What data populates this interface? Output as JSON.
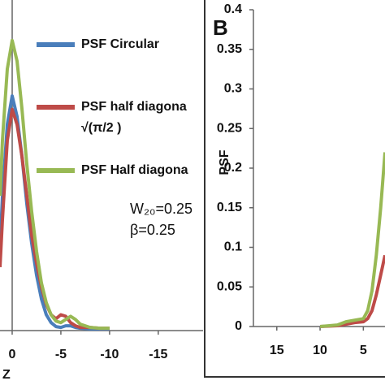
{
  "chart_data": [
    {
      "type": "line",
      "x": [
        1.25,
        1,
        0.5,
        0,
        -0.5,
        -1,
        -1.5,
        -2,
        -2.5,
        -3,
        -3.5,
        -4,
        -4.5,
        -5,
        -5.5,
        -6,
        -6.5,
        -7,
        -8,
        -9,
        -10
      ],
      "series": [
        {
          "name": "PSF  Circular",
          "color": "#4a7ebb",
          "values": [
            0.1,
            0.17,
            0.26,
            0.296,
            0.27,
            0.22,
            0.16,
            0.11,
            0.07,
            0.04,
            0.02,
            0.01,
            0.005,
            0.004,
            0.006,
            0.006,
            0.004,
            0.003,
            0.002,
            0.002,
            0.002
          ]
        },
        {
          "name": "PSF  half diagona",
          "color": "#be4b48",
          "values": [
            0.08,
            0.14,
            0.24,
            0.279,
            0.26,
            0.22,
            0.17,
            0.12,
            0.085,
            0.055,
            0.033,
            0.02,
            0.015,
            0.02,
            0.018,
            0.01,
            0.006,
            0.004,
            0.004,
            0.003,
            0.003
          ]
        },
        {
          "name": "PSF  Half diagona",
          "color": "#98b954",
          "values": [
            0.17,
            0.24,
            0.33,
            0.366,
            0.34,
            0.28,
            0.21,
            0.15,
            0.1,
            0.06,
            0.035,
            0.02,
            0.012,
            0.01,
            0.014,
            0.018,
            0.014,
            0.008,
            0.004,
            0.003,
            0.003
          ]
        }
      ],
      "xlim": [
        1.25,
        -19.6
      ],
      "xticks": [
        0,
        -5,
        -10,
        -15
      ],
      "ylim": [
        0,
        0.417
      ],
      "x_label": "Z",
      "annotations": [
        "√(π/2 )",
        "W₂₀=0.25",
        "β=0.25"
      ]
    },
    {
      "type": "line",
      "panel_label": "B",
      "y_label": "PSF",
      "x": [
        10,
        8,
        7,
        6,
        5,
        4.5,
        4,
        3.5,
        3,
        2.5
      ],
      "series": [
        {
          "color": "#be4b48",
          "values": [
            0,
            0.001,
            0.003,
            0.005,
            0.006,
            0.01,
            0.02,
            0.04,
            0.065,
            0.09
          ]
        },
        {
          "color": "#98b954",
          "values": [
            0,
            0.002,
            0.006,
            0.008,
            0.01,
            0.02,
            0.045,
            0.09,
            0.15,
            0.22
          ]
        }
      ],
      "xlim": [
        17.7,
        2.5
      ],
      "xticks": [
        15,
        10,
        5
      ],
      "ylim": [
        0,
        0.4
      ],
      "yticks": [
        0,
        0.05,
        0.1,
        0.15,
        0.2,
        0.25,
        0.3,
        0.35,
        0.4
      ]
    }
  ]
}
